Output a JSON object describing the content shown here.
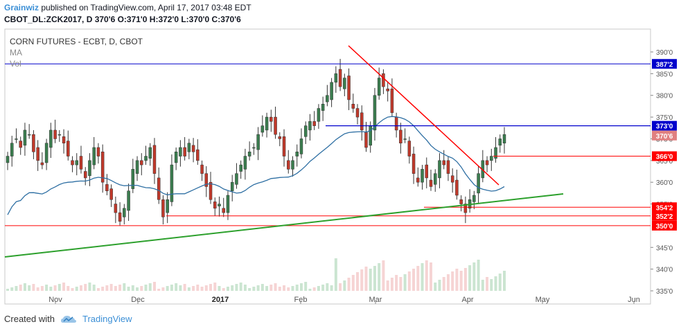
{
  "header": {
    "author": "Grainwiz",
    "published": "published on TradingView.com, April 17, 2017 03:48 EDT",
    "ohlc_line": "CBOT_DL:ZCK2017, D  370'6 O:371'0 H:372'0 L:370'0 C:370'6"
  },
  "legend": {
    "symbol": "CORN FUTURES - ECBT, D, CBOT",
    "ma": "MA",
    "vol": "Vol"
  },
  "footer": {
    "created_with": "Created with",
    "brand": "TradingView"
  },
  "colors": {
    "up": "#3b7d4f",
    "down": "#c0392b",
    "ma": "#2e6fa3",
    "blue_line": "#0000cc",
    "red_line": "#ff0000",
    "green_line": "#2ca02c"
  },
  "chart_data": {
    "type": "candlestick",
    "symbol": "CBOT_DL:ZCK2017",
    "timeframe": "D",
    "yaxis_ticks": [
      "390'0",
      "385'0",
      "380'0",
      "375'0",
      "370'0",
      "365'0",
      "360'0",
      "355'0",
      "345'0",
      "340'0",
      "335'0"
    ],
    "ylim": [
      334,
      392
    ],
    "xaxis_ticks": [
      {
        "label": "Nov",
        "bold": false
      },
      {
        "label": "Dec",
        "bold": false
      },
      {
        "label": "2017",
        "bold": true
      },
      {
        "label": "Feb",
        "bold": false
      },
      {
        "label": "Mar",
        "bold": false
      },
      {
        "label": "Apr",
        "bold": false
      },
      {
        "label": "May",
        "bold": false
      },
      {
        "label": "Jun",
        "bold": false
      }
    ],
    "price_tags": [
      {
        "label": "387'2",
        "value": 387.25,
        "color": "#0000cc"
      },
      {
        "label": "373'0",
        "value": 373.0,
        "color": "#0000cc"
      },
      {
        "label": "370'6",
        "value": 370.75,
        "color": "#e08080"
      },
      {
        "label": "366'0",
        "value": 366.0,
        "color": "#ff0000"
      },
      {
        "label": "354'2",
        "value": 354.25,
        "color": "#ff0000"
      },
      {
        "label": "352'2",
        "value": 352.25,
        "color": "#ff0000"
      },
      {
        "label": "350'0",
        "value": 350.0,
        "color": "#ff0000"
      }
    ],
    "last_ohlc": {
      "open": 371.0,
      "high": 372.0,
      "low": 370.0,
      "close": 370.75
    },
    "candles_close": [
      366,
      369,
      370,
      368,
      372,
      371,
      367,
      365,
      364,
      369,
      372,
      370,
      371,
      369,
      366,
      364,
      365,
      363,
      361,
      365,
      368,
      366,
      360,
      358,
      356,
      353,
      351,
      354,
      358,
      363,
      365,
      364,
      366,
      368,
      362,
      356,
      352,
      356,
      364,
      367,
      368,
      366,
      369,
      367,
      365,
      362,
      359,
      356,
      354,
      355,
      353,
      357,
      360,
      362,
      364,
      366,
      367,
      368,
      371,
      373,
      375,
      374,
      371,
      370,
      366,
      363,
      365,
      367,
      370,
      373,
      374,
      373,
      377,
      378,
      380,
      383,
      385,
      382,
      384,
      379,
      377,
      375,
      372,
      368,
      373,
      380,
      384,
      382,
      381,
      376,
      372,
      369,
      370,
      366,
      362,
      360,
      363,
      361,
      359,
      362,
      365,
      364,
      362,
      360,
      357,
      355,
      353,
      356,
      357,
      362,
      365,
      364,
      366,
      368,
      370,
      371
    ]
  }
}
